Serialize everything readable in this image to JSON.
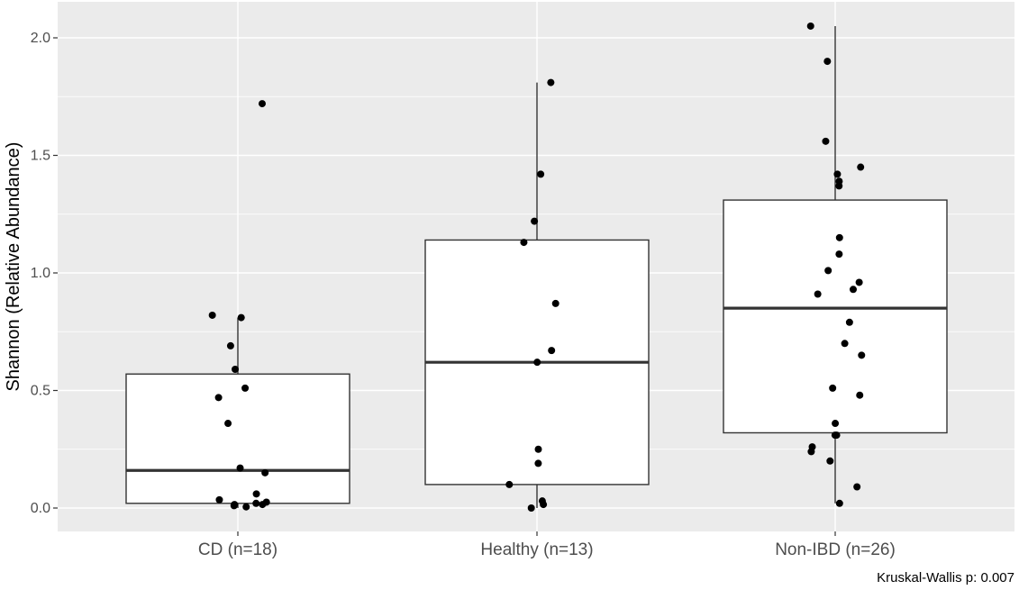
{
  "chart_data": {
    "type": "box",
    "ylabel": "Shannon (Relative Abundance)",
    "xlabel": "",
    "categories": [
      "CD (n=18)",
      "Healthy (n=13)",
      "Non-IBD (n=26)"
    ],
    "y_ticks": [
      0.0,
      0.5,
      1.0,
      1.5,
      2.0
    ],
    "y_tick_labels": [
      "0.0",
      "0.5",
      "1.0",
      "1.5",
      "2.0"
    ],
    "ylim": [
      -0.1,
      2.15
    ],
    "grid": true,
    "caption": "Kruskal-Wallis p: 0.007",
    "boxes": [
      {
        "category": "CD (n=18)",
        "min": 0.0,
        "q1": 0.02,
        "median": 0.16,
        "q3": 0.57,
        "max": 0.81
      },
      {
        "category": "Healthy (n=13)",
        "min": 0.0,
        "q1": 0.1,
        "median": 0.62,
        "q3": 1.14,
        "max": 1.81
      },
      {
        "category": "Non-IBD (n=26)",
        "min": 0.02,
        "q1": 0.32,
        "median": 0.85,
        "q3": 1.31,
        "max": 2.05
      }
    ],
    "points": [
      {
        "category": "CD (n=18)",
        "values": [
          1.72,
          0.82,
          0.81,
          0.69,
          0.59,
          0.51,
          0.47,
          0.36,
          0.17,
          0.15,
          0.06,
          0.035,
          0.025,
          0.02,
          0.015,
          0.015,
          0.01,
          0.005
        ]
      },
      {
        "category": "Healthy (n=13)",
        "values": [
          1.81,
          1.42,
          1.22,
          1.13,
          0.87,
          0.67,
          0.62,
          0.25,
          0.19,
          0.1,
          0.03,
          0.015,
          0.0
        ]
      },
      {
        "category": "Non-IBD (n=26)",
        "values": [
          2.05,
          1.9,
          1.56,
          1.45,
          1.42,
          1.39,
          1.37,
          1.15,
          1.08,
          1.01,
          0.96,
          0.93,
          0.91,
          0.79,
          0.7,
          0.65,
          0.51,
          0.48,
          0.36,
          0.31,
          0.31,
          0.26,
          0.24,
          0.2,
          0.09,
          0.02
        ]
      }
    ]
  }
}
